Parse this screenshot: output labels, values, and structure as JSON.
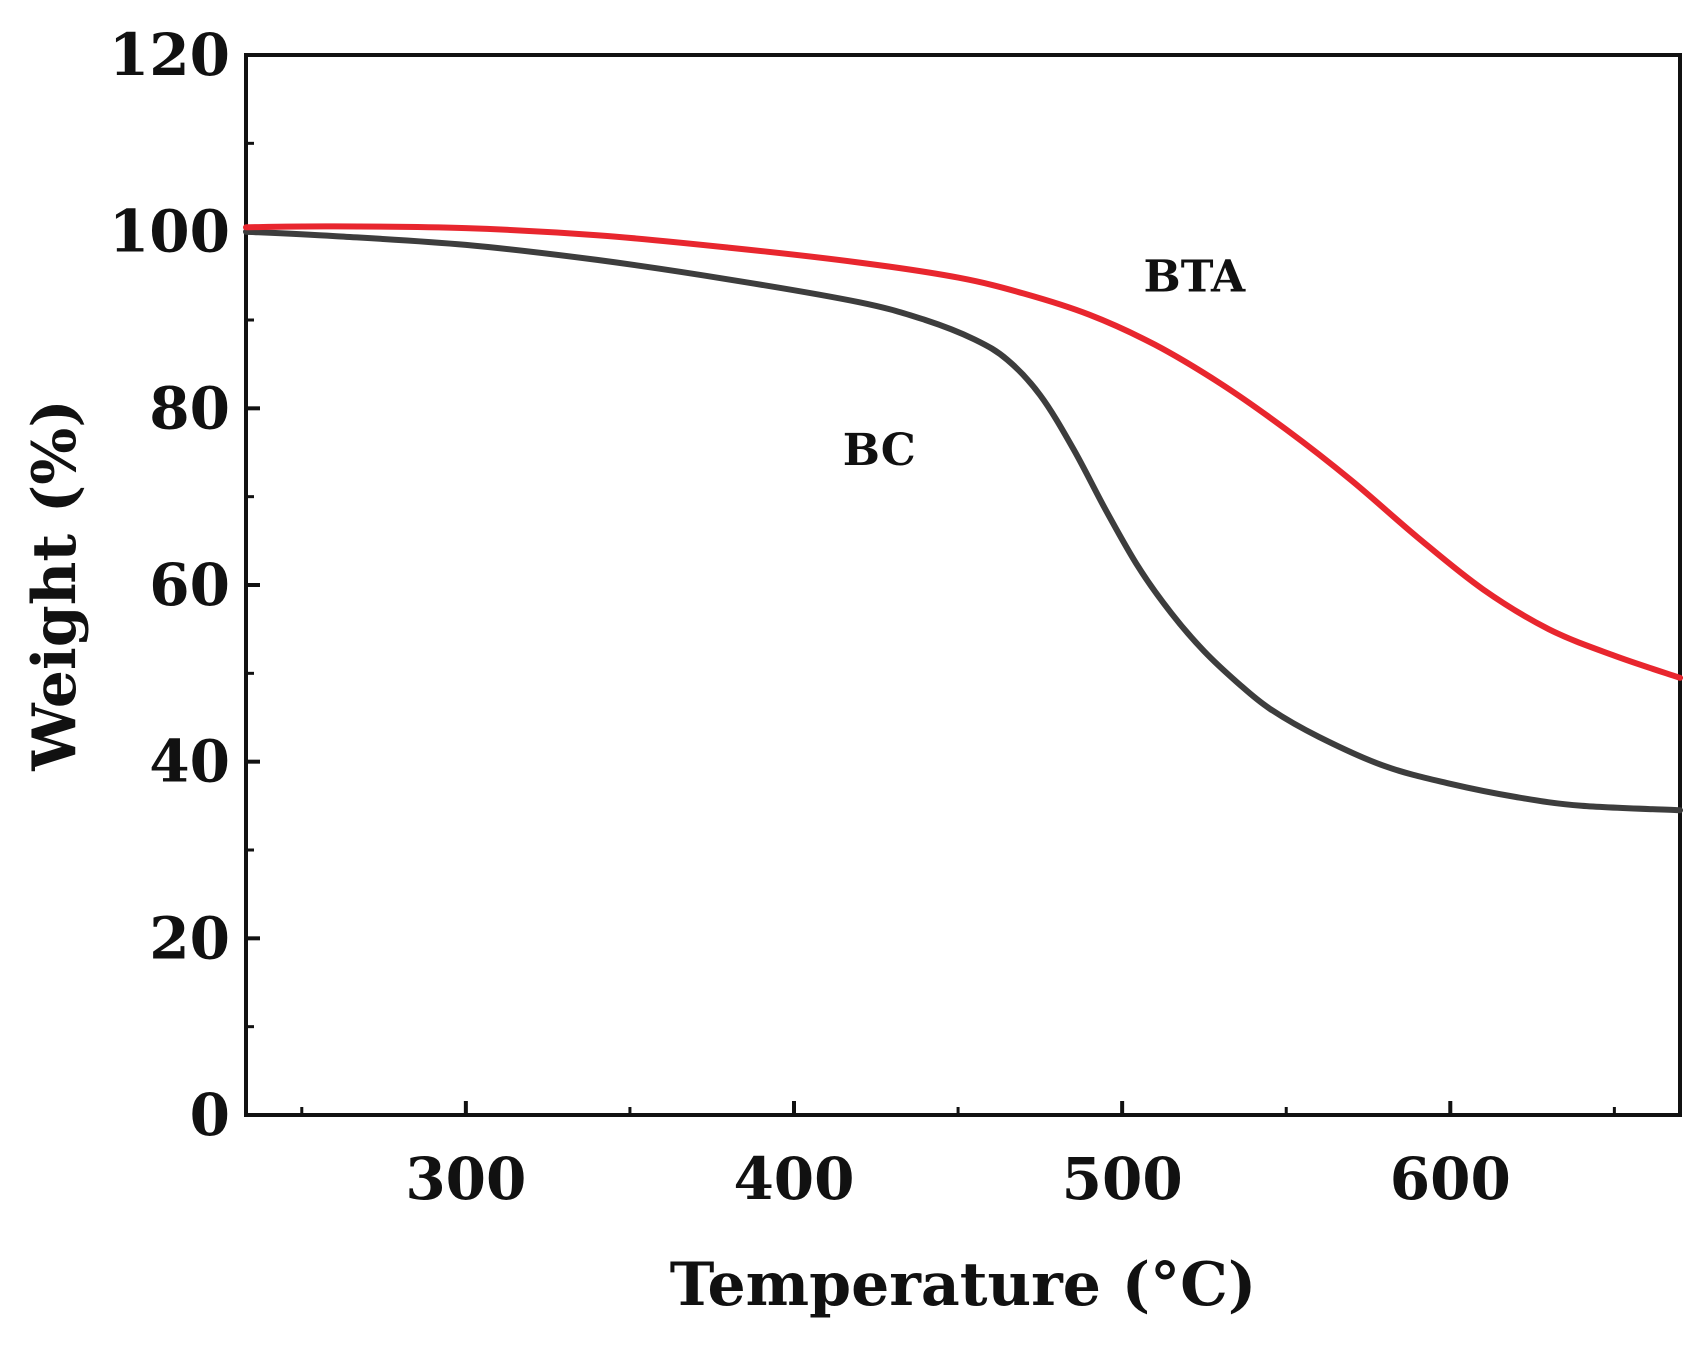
{
  "chart_data": {
    "type": "line",
    "title": "",
    "xlabel": "Temperature (°C)",
    "ylabel": "Weight (%)",
    "xlim": [
      233,
      670
    ],
    "ylim": [
      0,
      120
    ],
    "x_ticks": [
      300,
      400,
      500,
      600
    ],
    "x_tick_labels": [
      "300",
      "400",
      "500",
      "600"
    ],
    "x_minor_ticks": [
      250,
      350,
      450,
      550,
      650
    ],
    "y_ticks": [
      0,
      20,
      40,
      60,
      80,
      100,
      120
    ],
    "y_tick_labels": [
      "0",
      "20",
      "40",
      "60",
      "80",
      "100",
      "120"
    ],
    "y_minor_ticks": [
      10,
      30,
      50,
      70,
      90,
      110
    ],
    "grid": false,
    "series": [
      {
        "name": "BTA",
        "color": "#e8262e",
        "x": [
          233,
          260,
          300,
          340,
          380,
          420,
          450,
          470,
          490,
          510,
          530,
          550,
          570,
          590,
          610,
          630,
          650,
          670
        ],
        "y": [
          100.5,
          100.6,
          100.4,
          99.6,
          98.2,
          96.5,
          94.8,
          93.0,
          90.6,
          87.2,
          82.8,
          77.6,
          71.8,
          65.4,
          59.5,
          55.0,
          52.0,
          49.5
        ]
      },
      {
        "name": "BC",
        "color": "#3d3d3d",
        "x": [
          233,
          260,
          300,
          340,
          380,
          420,
          440,
          455,
          465,
          475,
          485,
          495,
          505,
          515,
          525,
          535,
          545,
          560,
          580,
          600,
          620,
          640,
          670
        ],
        "y": [
          100.0,
          99.5,
          98.5,
          96.8,
          94.6,
          92.0,
          90.0,
          87.8,
          85.5,
          81.5,
          75.5,
          68.5,
          62.0,
          56.8,
          52.5,
          49.0,
          46.0,
          42.8,
          39.5,
          37.5,
          36.0,
          35.0,
          34.5
        ]
      }
    ],
    "annotations": [
      {
        "text": "BTA",
        "x": 522,
        "y": 93.2
      },
      {
        "text": "BC",
        "x": 426,
        "y": 73.6
      }
    ]
  }
}
